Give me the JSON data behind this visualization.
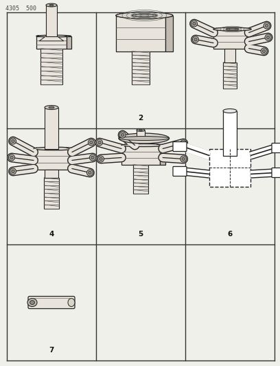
{
  "bg_color": "#f0f0eb",
  "cell_bg": "#f8f8f5",
  "grid_color": "#222222",
  "header_text": "4305  500",
  "header_fontsize": 6,
  "label_fontsize": 7.5,
  "line_color": "#333333",
  "part_fill": "#e8e4dc",
  "part_edge": "#222222",
  "thread_color": "#555555",
  "shadow_color": "#c0bab0"
}
